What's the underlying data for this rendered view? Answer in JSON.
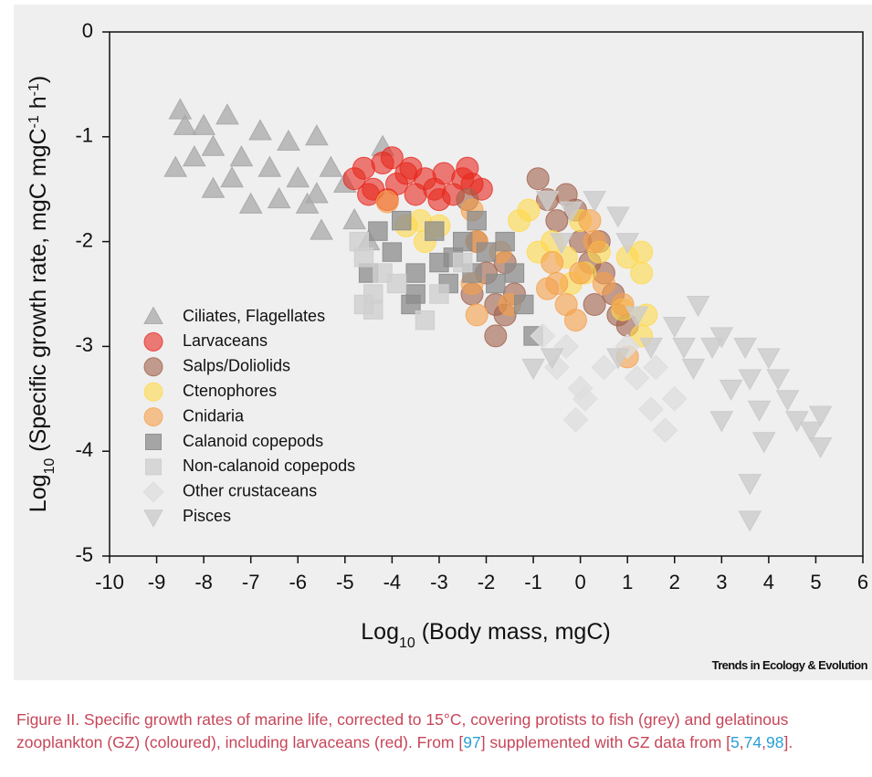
{
  "chart_data": {
    "type": "scatter",
    "xlabel": [
      {
        "text": "Log"
      },
      {
        "text": "10",
        "shift": "sub"
      },
      {
        "text": " (Body mass, mgC)"
      }
    ],
    "ylabel": [
      {
        "text": "Log"
      },
      {
        "text": "10",
        "shift": "sub"
      },
      {
        "text": " (Specific growth rate, mgC mgC"
      },
      {
        "text": "-1",
        "shift": "super"
      },
      {
        "text": " h"
      },
      {
        "text": "-1",
        "shift": "super"
      },
      {
        "text": ")"
      }
    ],
    "xlim": [
      -10,
      6
    ],
    "xticks": [
      -10,
      -9,
      -8,
      -7,
      -6,
      -5,
      -4,
      -3,
      -2,
      -1,
      0,
      1,
      2,
      3,
      4,
      5,
      6
    ],
    "ylim": [
      -5,
      0
    ],
    "yticks": [
      0,
      -1,
      -2,
      -3,
      -4,
      -5
    ],
    "legend": "left",
    "series": [
      {
        "name": "Ciliates, Flagellates",
        "color": "#a9a9a9",
        "opacity": 0.75,
        "marker": "triangle-up",
        "x": [
          -8.5,
          -8.4,
          -8.2,
          -8.0,
          -7.8,
          -7.8,
          -7.5,
          -7.4,
          -7.0,
          -6.8,
          -6.6,
          -6.4,
          -6.2,
          -6.0,
          -5.8,
          -5.6,
          -5.5,
          -5.3,
          -5.0,
          -4.8,
          -4.5,
          -4.2,
          -5.6,
          -8.6,
          -7.2
        ],
        "values": [
          -0.75,
          -0.9,
          -1.2,
          -0.9,
          -1.1,
          -1.5,
          -0.8,
          -1.4,
          -1.65,
          -0.95,
          -1.3,
          -1.6,
          -1.05,
          -1.4,
          -1.65,
          -1.0,
          -1.9,
          -1.3,
          -1.45,
          -1.8,
          -2.0,
          -1.1,
          -1.55,
          -1.3,
          -1.2
        ]
      },
      {
        "name": "Larvaceans",
        "color": "#e8281e",
        "opacity": 0.6,
        "marker": "circle",
        "x": [
          -4.8,
          -4.6,
          -4.4,
          -4.2,
          -4.0,
          -3.9,
          -3.7,
          -3.5,
          -3.3,
          -3.1,
          -2.9,
          -2.7,
          -2.5,
          -2.3,
          -2.1,
          -4.1,
          -3.6,
          -2.4,
          -4.5,
          -3.0
        ],
        "values": [
          -1.4,
          -1.3,
          -1.5,
          -1.25,
          -1.2,
          -1.45,
          -1.35,
          -1.55,
          -1.4,
          -1.5,
          -1.35,
          -1.55,
          -1.4,
          -1.45,
          -1.5,
          -1.6,
          -1.3,
          -1.3,
          -1.55,
          -1.6
        ]
      },
      {
        "name": "Salps/Doliolids",
        "color": "#a0604a",
        "opacity": 0.6,
        "marker": "circle",
        "x": [
          -2.4,
          -2.2,
          -2.0,
          -1.8,
          -1.8,
          -2.3,
          -1.6,
          -1.4,
          -0.9,
          -0.7,
          -0.5,
          -0.3,
          -0.1,
          0.0,
          0.2,
          0.4,
          0.5,
          0.7,
          0.8,
          1.0,
          0.3,
          -1.6
        ],
        "values": [
          -1.6,
          -2.0,
          -2.3,
          -2.6,
          -2.9,
          -2.5,
          -2.2,
          -2.5,
          -1.4,
          -1.6,
          -1.8,
          -1.55,
          -1.7,
          -2.0,
          -2.2,
          -2.0,
          -2.3,
          -2.5,
          -2.7,
          -2.8,
          -2.6,
          -2.7
        ]
      },
      {
        "name": "Ctenophores",
        "color": "#ffd84a",
        "opacity": 0.6,
        "marker": "circle",
        "x": [
          -3.4,
          -3.3,
          -3.0,
          -1.3,
          -1.1,
          -0.9,
          -0.6,
          -0.3,
          -0.2,
          0.0,
          0.1,
          0.4,
          1.0,
          1.3,
          1.3,
          1.4,
          1.3,
          0.9,
          -3.7
        ],
        "values": [
          -1.8,
          -2.0,
          -1.85,
          -1.8,
          -1.7,
          -2.1,
          -2.0,
          -2.15,
          -2.4,
          -1.8,
          -2.3,
          -2.1,
          -2.15,
          -2.1,
          -2.3,
          -2.7,
          -2.9,
          -2.65,
          -1.85
        ]
      },
      {
        "name": "Cnidaria",
        "color": "#f5a04a",
        "opacity": 0.6,
        "marker": "circle",
        "x": [
          -4.1,
          -2.3,
          -2.2,
          -2.3,
          -2.2,
          -1.7,
          -1.5,
          -0.6,
          -0.5,
          -0.3,
          -0.1,
          0.0,
          0.3,
          0.5,
          0.9,
          1.0,
          0.2,
          -0.7
        ],
        "values": [
          -1.62,
          -1.7,
          -2.0,
          -2.4,
          -2.7,
          -2.1,
          -2.6,
          -2.2,
          -2.4,
          -2.6,
          -2.75,
          -2.3,
          -2.0,
          -2.4,
          -2.6,
          -3.1,
          -1.8,
          -2.45
        ]
      },
      {
        "name": "Calanoid copepods",
        "color": "#8c8c8c",
        "opacity": 0.75,
        "marker": "square",
        "x": [
          -4.3,
          -4.0,
          -3.8,
          -3.5,
          -3.5,
          -3.1,
          -3.0,
          -2.8,
          -2.5,
          -2.3,
          -2.0,
          -1.8,
          -1.6,
          -1.4,
          -1.2,
          -1.0,
          -4.5,
          -3.6,
          -2.7,
          -2.2
        ],
        "values": [
          -1.9,
          -2.1,
          -1.8,
          -2.3,
          -2.5,
          -1.9,
          -2.2,
          -2.4,
          -2.0,
          -2.3,
          -2.1,
          -2.4,
          -2.0,
          -2.3,
          -2.6,
          -2.9,
          -2.3,
          -2.6,
          -2.15,
          -1.8
        ]
      },
      {
        "name": "Non-calanoid copepods",
        "color": "#cfcfcf",
        "opacity": 0.8,
        "marker": "square",
        "x": [
          -4.7,
          -4.6,
          -4.4,
          -4.4,
          -4.2,
          -3.3,
          -3.0,
          -2.5,
          -3.9,
          -4.6
        ],
        "values": [
          -2.0,
          -2.15,
          -2.5,
          -2.65,
          -2.3,
          -2.75,
          -2.5,
          -2.2,
          -2.4,
          -2.6
        ]
      },
      {
        "name": "Other crustaceans",
        "color": "#dedede",
        "opacity": 0.8,
        "marker": "diamond",
        "x": [
          -0.8,
          -0.5,
          0.0,
          -0.1,
          0.1,
          0.5,
          1.0,
          1.2,
          1.5,
          1.8,
          2.0,
          -0.3,
          1.6
        ],
        "values": [
          -2.9,
          -3.2,
          -3.4,
          -3.7,
          -3.5,
          -3.2,
          -3.0,
          -3.3,
          -3.6,
          -3.8,
          -3.5,
          -3.0,
          -3.2
        ]
      },
      {
        "name": "Pisces",
        "color": "#cccccc",
        "opacity": 0.8,
        "marker": "triangle-down",
        "x": [
          -0.7,
          -0.2,
          0.3,
          0.8,
          1.0,
          -0.4,
          -1.0,
          -0.6,
          1.2,
          1.5,
          2.0,
          2.2,
          2.5,
          2.8,
          3.0,
          3.2,
          3.5,
          3.6,
          3.8,
          4.0,
          4.2,
          4.4,
          4.6,
          4.9,
          5.1,
          5.1,
          3.0,
          3.9,
          3.6,
          3.6,
          2.4,
          0.8
        ],
        "values": [
          -1.6,
          -1.7,
          -1.6,
          -1.75,
          -2.0,
          -2.0,
          -3.2,
          -3.1,
          -2.7,
          -3.0,
          -2.8,
          -3.0,
          -2.6,
          -3.0,
          -2.9,
          -3.4,
          -3.0,
          -3.3,
          -3.6,
          -3.1,
          -3.3,
          -3.5,
          -3.7,
          -3.8,
          -3.65,
          -3.95,
          -3.7,
          -3.9,
          -4.3,
          -4.65,
          -3.2,
          -3.1
        ]
      }
    ]
  },
  "credit": "Trends in Ecology & Evolution",
  "caption": [
    "Figure II. Specific growth rates of marine life, corrected to 15°C, covering protists to fish (grey) and gelatinous zooplankton (GZ) (coloured), including larvaceans (red). From [",
    "97",
    "] supplemented with GZ data from [",
    "5",
    ",",
    "74",
    ",",
    "98",
    "]."
  ]
}
